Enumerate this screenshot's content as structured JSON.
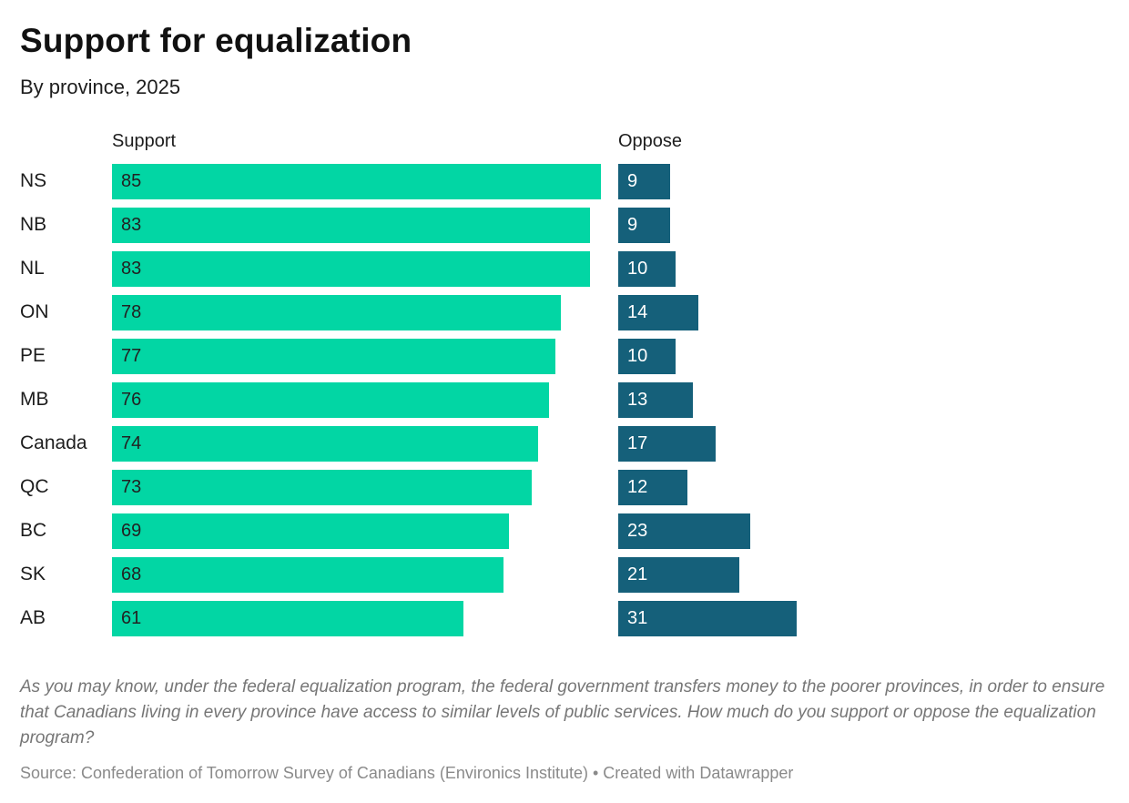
{
  "header": {
    "title": "Support for equalization",
    "subtitle": "By province, 2025"
  },
  "columns": {
    "support_label": "Support",
    "oppose_label": "Oppose"
  },
  "colors": {
    "support_bar": "#02d6a4",
    "oppose_bar": "#15607a",
    "support_value_text": "#222222",
    "oppose_value_text": "#ffffff"
  },
  "chart_data": {
    "type": "bar",
    "orientation": "horizontal",
    "title": "Support for equalization",
    "subtitle": "By province, 2025",
    "categories": [
      "NS",
      "NB",
      "NL",
      "ON",
      "PE",
      "MB",
      "Canada",
      "QC",
      "BC",
      "SK",
      "AB"
    ],
    "series": [
      {
        "name": "Support",
        "color": "#02d6a4",
        "values": [
          85,
          83,
          83,
          78,
          77,
          76,
          74,
          73,
          69,
          68,
          61
        ]
      },
      {
        "name": "Oppose",
        "color": "#15607a",
        "values": [
          9,
          9,
          10,
          14,
          10,
          13,
          17,
          12,
          23,
          21,
          31
        ]
      }
    ],
    "value_labels": "inside-start",
    "xlim": [
      0,
      88
    ],
    "grid": false,
    "legend_position": "column-headers"
  },
  "footer": {
    "note": "As you may know, under the federal equalization program, the federal government transfers money to the poorer provinces, in order to ensure that Canadians living in every province have access to similar levels of public services. How much do you support or oppose the equalization program?",
    "source": "Source: Confederation of Tomorrow Survey of Canadians (Environics Institute) • Created with Datawrapper"
  }
}
